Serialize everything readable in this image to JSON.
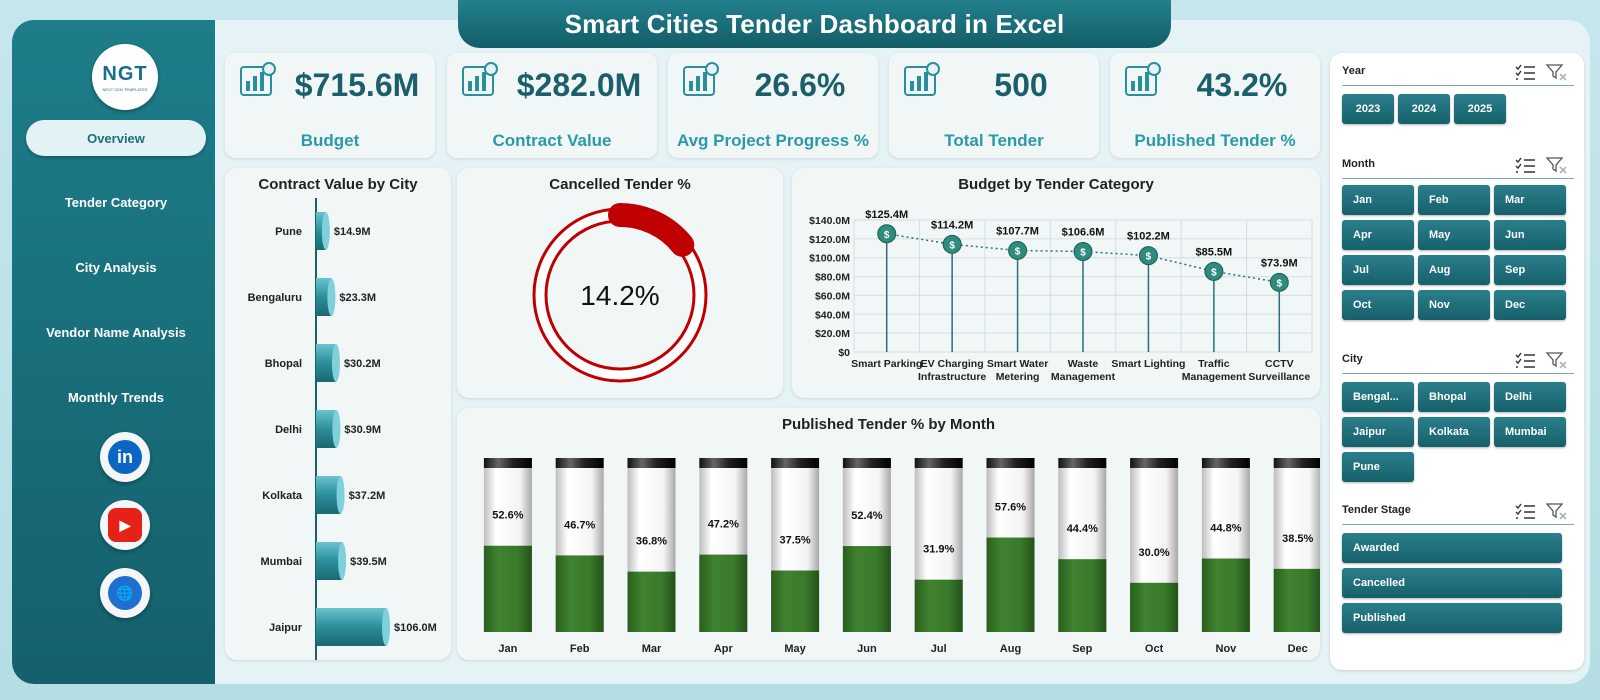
{
  "title": "Smart Cities Tender Dashboard  in Excel",
  "logo": {
    "text": "NGT",
    "sub": "NEXT GEN TEMPLATES"
  },
  "nav": [
    {
      "label": "Overview",
      "active": true
    },
    {
      "label": "Tender Category",
      "active": false
    },
    {
      "label": "City Analysis",
      "active": false
    },
    {
      "label": "Vendor Name Analysis",
      "active": false
    },
    {
      "label": "Monthly Trends",
      "active": false
    }
  ],
  "social": [
    {
      "icon": "linkedin-icon",
      "color": "#0a66c2",
      "text": "in"
    },
    {
      "icon": "youtube-icon",
      "color": "#e62117",
      "text": "▶"
    },
    {
      "icon": "website-globe-icon",
      "color": "#1f6fd0",
      "text": "🌐"
    }
  ],
  "kpis": [
    {
      "value": "$715.6M",
      "label": "Budget",
      "icon": "budget-growth-icon"
    },
    {
      "value": "$282.0M",
      "label": "Contract Value",
      "icon": "contract-document-icon"
    },
    {
      "value": "26.6%",
      "label": "Avg Project Progress %",
      "icon": "progress-plant-icon"
    },
    {
      "value": "500",
      "label": "Total Tender",
      "icon": "tender-report-icon"
    },
    {
      "value": "43.2%",
      "label": "Published Tender %",
      "icon": "published-money-icon"
    }
  ],
  "city_chart": {
    "title": "Contract Value by City",
    "cities": [
      "Pune",
      "Bengaluru",
      "Bhopal",
      "Delhi",
      "Kolkata",
      "Mumbai",
      "Jaipur"
    ],
    "values": [
      14.9,
      23.3,
      30.2,
      30.9,
      37.2,
      39.5,
      106.0
    ],
    "labels": [
      "$14.9M",
      "$23.3M",
      "$30.2M",
      "$30.9M",
      "$37.2M",
      "$39.5M",
      "$106.0M"
    ]
  },
  "cancelled": {
    "title": "Cancelled Tender %",
    "value": 14.2,
    "label": "14.2%"
  },
  "budget_chart": {
    "title": "Budget by Tender Category",
    "categories": [
      [
        "Smart Parking"
      ],
      [
        "EV Charging",
        "Infrastructure"
      ],
      [
        "Smart Water",
        "Metering"
      ],
      [
        "Waste",
        "Management"
      ],
      [
        "Smart Lighting"
      ],
      [
        "Traffic",
        "Management"
      ],
      [
        "CCTV",
        "Surveillance"
      ]
    ],
    "values": [
      125.4,
      114.2,
      107.7,
      106.6,
      102.2,
      85.5,
      73.9
    ],
    "labels": [
      "$125.4M",
      "$114.2M",
      "$107.7M",
      "$106.6M",
      "$102.2M",
      "$85.5M",
      "$73.9M"
    ],
    "yticks": [
      "$0",
      "$20.0M",
      "$40.0M",
      "$60.0M",
      "$80.0M",
      "$100.0M",
      "$120.0M",
      "$140.0M"
    ],
    "ymax": 140
  },
  "month_chart": {
    "title": "Published Tender % by Month",
    "months": [
      "Jan",
      "Feb",
      "Mar",
      "Apr",
      "May",
      "Jun",
      "Jul",
      "Aug",
      "Sep",
      "Oct",
      "Nov",
      "Dec"
    ],
    "values": [
      52.6,
      46.7,
      36.8,
      47.2,
      37.5,
      52.4,
      31.9,
      57.6,
      44.4,
      30.0,
      44.8,
      38.5
    ],
    "labels": [
      "52.6%",
      "46.7%",
      "36.8%",
      "47.2%",
      "37.5%",
      "52.4%",
      "31.9%",
      "57.6%",
      "44.4%",
      "30.0%",
      "44.8%",
      "38.5%"
    ]
  },
  "slicers": {
    "year": {
      "title": "Year",
      "items": [
        "2023",
        "2024",
        "2025"
      ]
    },
    "month": {
      "title": "Month",
      "items": [
        "Jan",
        "Feb",
        "Mar",
        "Apr",
        "May",
        "Jun",
        "Jul",
        "Aug",
        "Sep",
        "Oct",
        "Nov",
        "Dec"
      ]
    },
    "city": {
      "title": "City",
      "items": [
        "Bengal...",
        "Bhopal",
        "Delhi",
        "Jaipur",
        "Kolkata",
        "Mumbai",
        "Pune"
      ]
    },
    "stage": {
      "title": "Tender Stage",
      "items": [
        "Awarded",
        "Cancelled",
        "Published"
      ]
    }
  },
  "colors": {
    "teal": "#1b6f7b",
    "green": "#3d7a2a",
    "red": "#c00000"
  }
}
